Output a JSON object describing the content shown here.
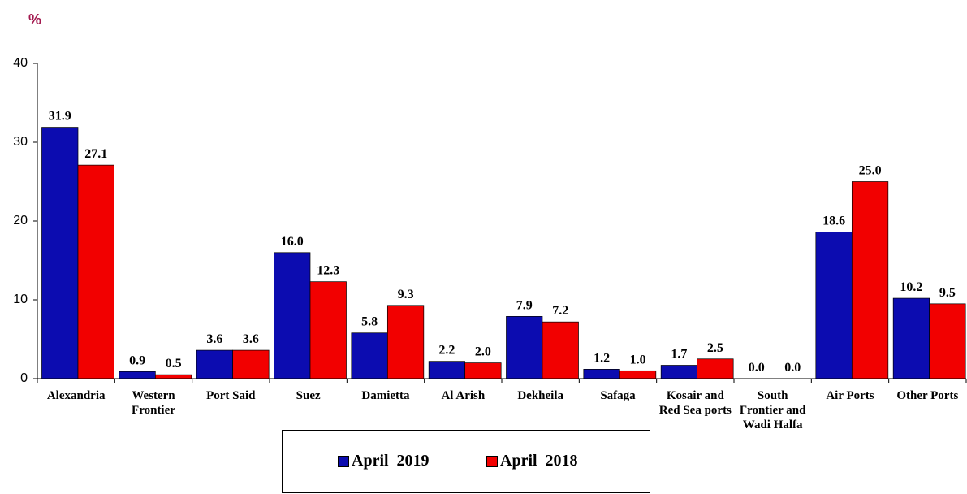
{
  "chart_data": {
    "type": "bar",
    "y_label": "%",
    "categories": [
      "Alexandria",
      "Western Frontier",
      "Port Said",
      "Suez",
      "Damietta",
      "Al Arish",
      "Dekheila",
      "Safaga",
      "Kosair and Red Sea ports",
      "South Frontier and Wadi Halfa",
      "Air Ports",
      "Other Ports"
    ],
    "series": [
      {
        "name": "April  2019",
        "color": "#0c0cb0",
        "values": [
          31.9,
          0.9,
          3.6,
          16.0,
          5.8,
          2.2,
          7.9,
          1.2,
          1.7,
          0.0,
          18.6,
          10.2
        ],
        "value_labels": [
          "31.9",
          "0.9",
          "3.6",
          "16.0",
          "5.8",
          "2.2",
          "7.9",
          "1.2",
          "1.7",
          "0.0",
          "18.6",
          "10.2"
        ]
      },
      {
        "name": "April  2018",
        "color": "#f20000",
        "values": [
          27.1,
          0.5,
          3.6,
          12.3,
          9.3,
          2.0,
          7.2,
          1.0,
          2.5,
          0.0,
          25.0,
          9.5
        ],
        "value_labels": [
          "27.1",
          "0.5",
          "3.6",
          "12.3",
          "9.3",
          "2.0",
          "7.2",
          "1.0",
          "2.5",
          "0.0",
          "25.0",
          "9.5"
        ]
      }
    ],
    "ylim": [
      0,
      40
    ],
    "yticks": [
      0,
      10,
      20,
      30,
      40
    ],
    "legend": "bottom"
  }
}
